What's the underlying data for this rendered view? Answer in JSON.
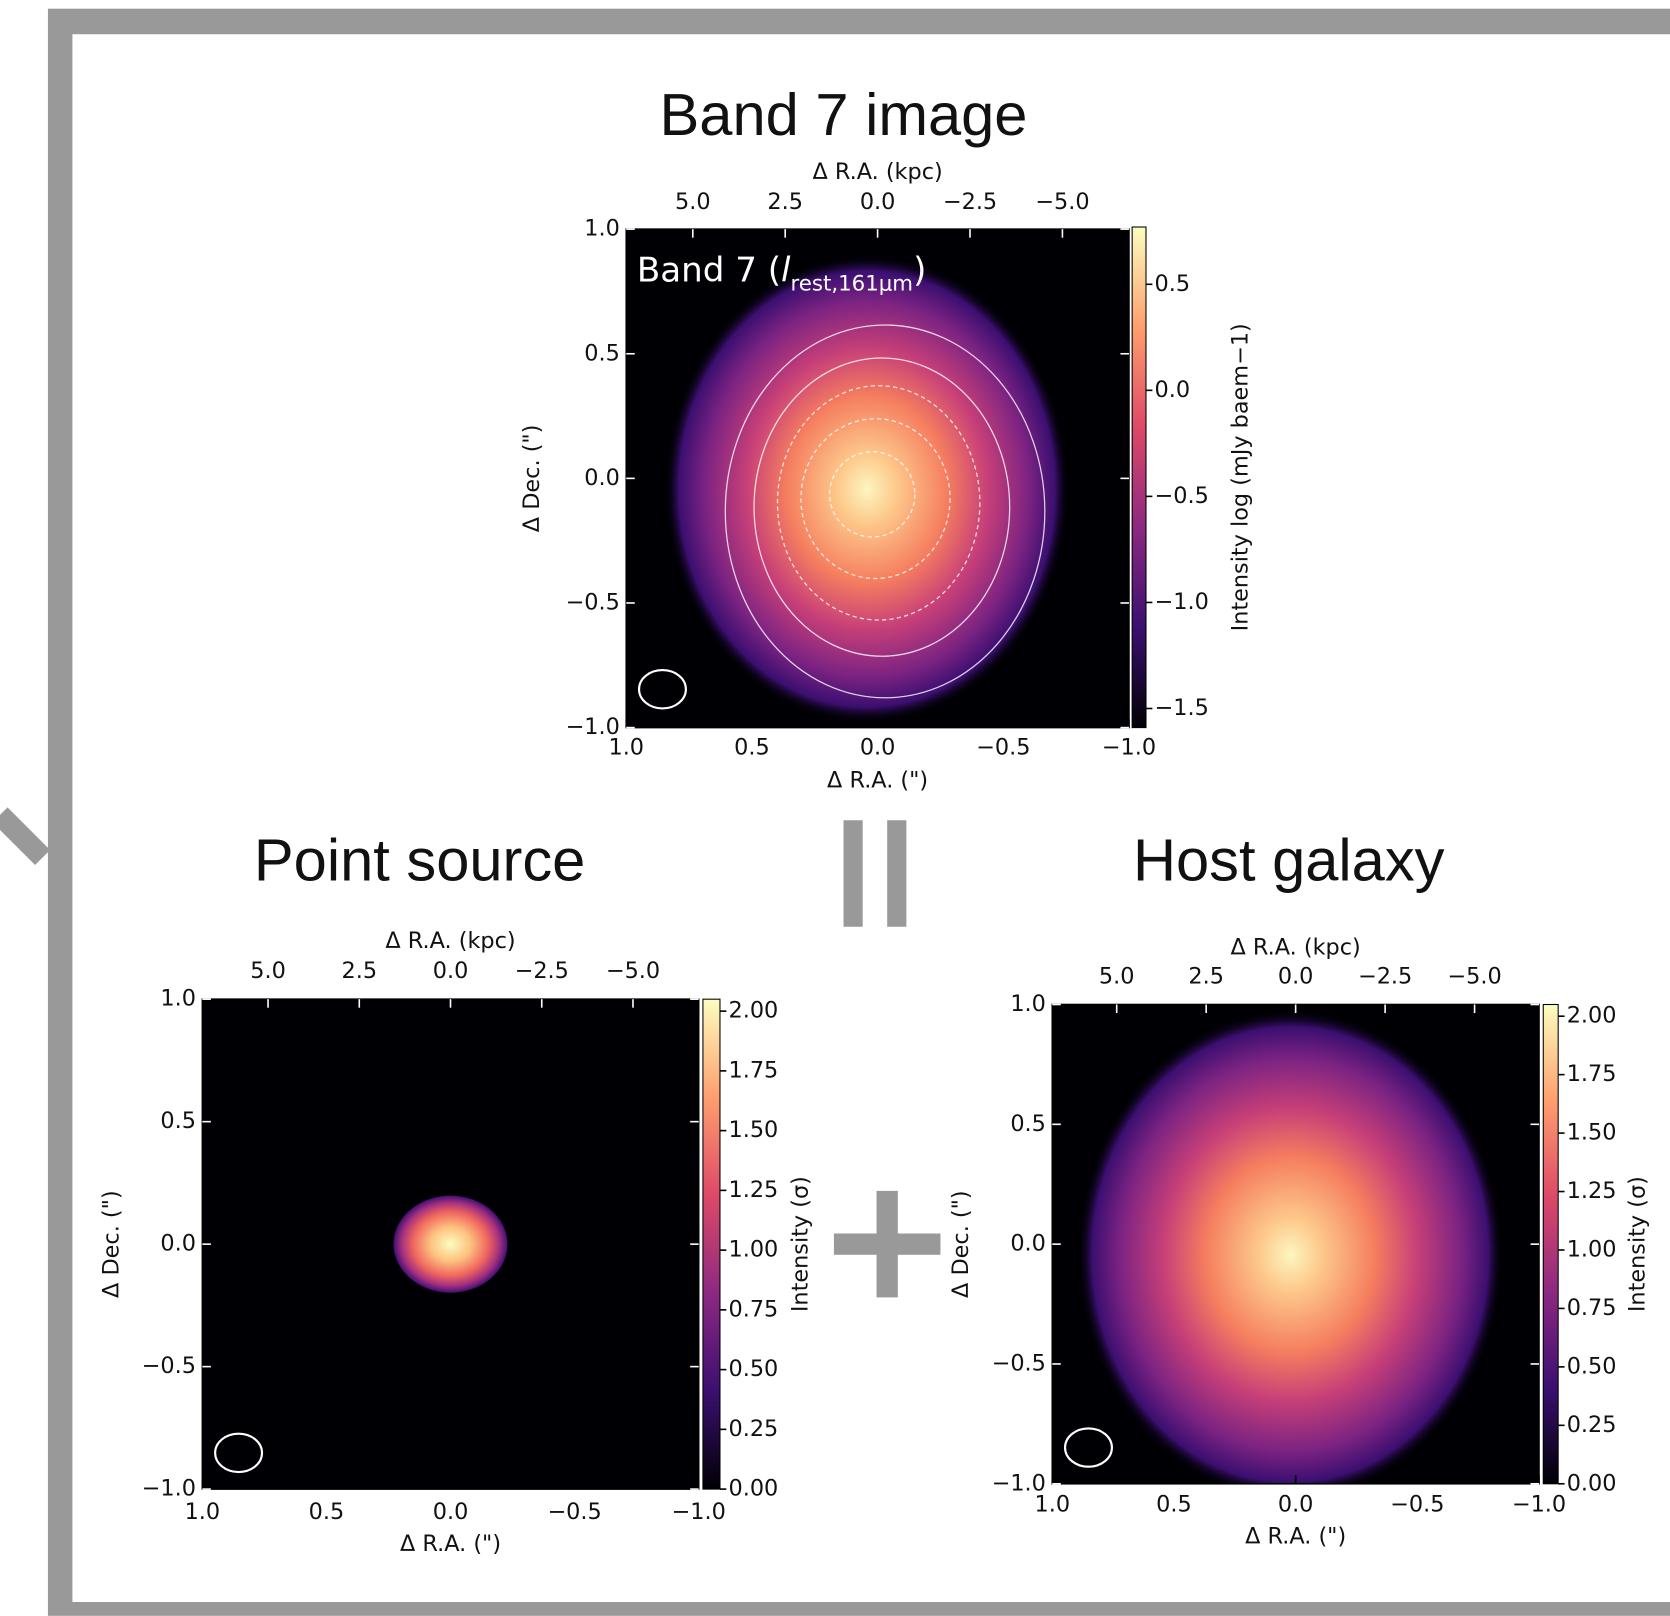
{
  "chart_data": [
    {
      "type": "image",
      "title": "Band 7 image",
      "annotation": [
        "Band 7 (",
        "l",
        "rest,161μm",
        ")"
      ],
      "xlabel": "Δ R.A. (\")",
      "x2label": "Δ R.A. (kpc)",
      "ylabel": "Δ Dec. (\")",
      "xlim": [
        1,
        -1
      ],
      "xticks": [
        {
          "value": 1,
          "label": "1.0"
        },
        {
          "value": 0.5,
          "label": "0.5"
        },
        {
          "value": 0,
          "label": "0.0"
        },
        {
          "value": -0.5,
          "label": "−0.5"
        },
        {
          "value": -1,
          "label": "−1.0"
        }
      ],
      "x2lim": [
        6.8,
        -6.8
      ],
      "x2ticks": [
        {
          "value": 5,
          "label": "5.0"
        },
        {
          "value": 2.5,
          "label": "2.5"
        },
        {
          "value": 0,
          "label": "0.0"
        },
        {
          "value": -2.5,
          "label": "−2.5"
        },
        {
          "value": -5,
          "label": "−5.0"
        }
      ],
      "ylim": [
        -1,
        1
      ],
      "yticks": [
        {
          "value": 1,
          "label": "1.0"
        },
        {
          "value": 0.5,
          "label": "0.5"
        },
        {
          "value": 0,
          "label": "0.0"
        },
        {
          "value": -0.5,
          "label": "−0.5"
        },
        {
          "value": -1,
          "label": "−1.0"
        }
      ],
      "clabel": "Intensity log (mJy baem−1)",
      "clim": [
        -1.59,
        0.77
      ],
      "cticks": [
        {
          "value": 0.5,
          "label": "0.5"
        },
        {
          "value": 0,
          "label": "0.0"
        },
        {
          "value": -0.5,
          "label": "−0.5"
        },
        {
          "value": -1,
          "label": "−1.0"
        },
        {
          "value": -1.5,
          "label": "−1.5"
        }
      ]
    },
    {
      "type": "image",
      "title": "Point source",
      "xlabel": "Δ R.A. (\")",
      "x2label": "Δ R.A. (kpc)",
      "ylabel": "Δ Dec. (\")",
      "xlim": [
        1,
        -1
      ],
      "xticks": [
        {
          "value": 1,
          "label": "1.0"
        },
        {
          "value": 0.5,
          "label": "0.5"
        },
        {
          "value": 0,
          "label": "0.0"
        },
        {
          "value": -0.5,
          "label": "−0.5"
        },
        {
          "value": -1,
          "label": "−1.0"
        }
      ],
      "x2lim": [
        6.8,
        -6.8
      ],
      "x2ticks": [
        {
          "value": 5,
          "label": "5.0"
        },
        {
          "value": 2.5,
          "label": "2.5"
        },
        {
          "value": 0,
          "label": "0.0"
        },
        {
          "value": -2.5,
          "label": "−2.5"
        },
        {
          "value": -5,
          "label": "−5.0"
        }
      ],
      "ylim": [
        -1,
        1
      ],
      "yticks": [
        {
          "value": 1,
          "label": "1.0"
        },
        {
          "value": 0.5,
          "label": "0.5"
        },
        {
          "value": 0,
          "label": "0.0"
        },
        {
          "value": -0.5,
          "label": "−0.5"
        },
        {
          "value": -1,
          "label": "−1.0"
        }
      ],
      "clabel": "Intensity (σ)",
      "clim": [
        0,
        2.05
      ],
      "cticks": [
        {
          "value": 0,
          "label": "0.00"
        },
        {
          "value": 0.25,
          "label": "0.25"
        },
        {
          "value": 0.5,
          "label": "0.50"
        },
        {
          "value": 0.75,
          "label": "0.75"
        },
        {
          "value": 1,
          "label": "1.00"
        },
        {
          "value": 1.25,
          "label": "1.25"
        },
        {
          "value": 1.5,
          "label": "1.50"
        },
        {
          "value": 1.75,
          "label": "1.75"
        },
        {
          "value": 2,
          "label": "2.00"
        }
      ]
    },
    {
      "type": "image",
      "title": "Host galaxy",
      "xlabel": "Δ R.A. (\")",
      "x2label": "Δ R.A. (kpc)",
      "ylabel": "Δ Dec. (\")",
      "xlim": [
        1,
        -1
      ],
      "xticks": [
        {
          "value": 1,
          "label": "1.0"
        },
        {
          "value": 0.5,
          "label": "0.5"
        },
        {
          "value": 0,
          "label": "0.0"
        },
        {
          "value": -0.5,
          "label": "−0.5"
        },
        {
          "value": -1,
          "label": "−1.0"
        }
      ],
      "x2lim": [
        6.8,
        -6.8
      ],
      "x2ticks": [
        {
          "value": 5,
          "label": "5.0"
        },
        {
          "value": 2.5,
          "label": "2.5"
        },
        {
          "value": 0,
          "label": "0.0"
        },
        {
          "value": -2.5,
          "label": "−2.5"
        },
        {
          "value": -5,
          "label": "−5.0"
        }
      ],
      "ylim": [
        -1,
        1
      ],
      "yticks": [
        {
          "value": 1,
          "label": "1.0"
        },
        {
          "value": 0.5,
          "label": "0.5"
        },
        {
          "value": 0,
          "label": "0.0"
        },
        {
          "value": -0.5,
          "label": "−0.5"
        },
        {
          "value": -1,
          "label": "−1.0"
        }
      ],
      "clabel": "Intensity (σ)",
      "clim": [
        0,
        2.05
      ],
      "cticks": [
        {
          "value": 0,
          "label": "0.00"
        },
        {
          "value": 0.25,
          "label": "0.25"
        },
        {
          "value": 0.5,
          "label": "0.50"
        },
        {
          "value": 0.75,
          "label": "0.75"
        },
        {
          "value": 1,
          "label": "1.00"
        },
        {
          "value": 1.25,
          "label": "1.25"
        },
        {
          "value": 1.5,
          "label": "1.50"
        },
        {
          "value": 1.75,
          "label": "1.75"
        },
        {
          "value": 2,
          "label": "2.00"
        }
      ]
    }
  ]
}
